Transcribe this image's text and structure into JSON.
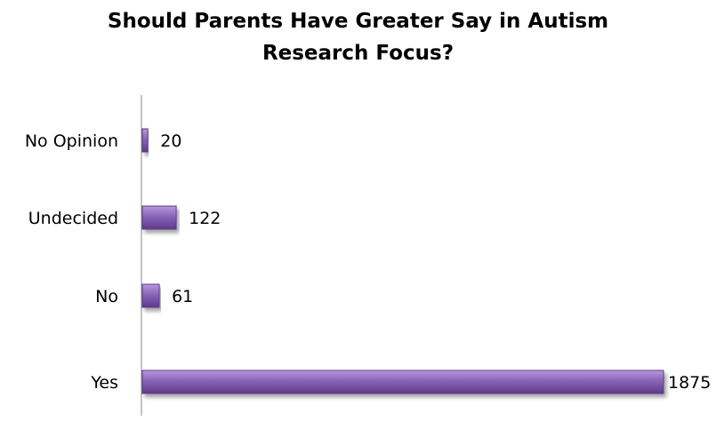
{
  "chart_data": {
    "type": "bar",
    "orientation": "horizontal",
    "title": "Should Parents Have Greater Say in Autism\nResearch Focus?",
    "categories": [
      "No Opinion",
      "Undecided",
      "No",
      "Yes"
    ],
    "values": [
      20,
      122,
      61,
      1875
    ],
    "xlim": [
      0,
      1875
    ],
    "grid": false,
    "legend": "none",
    "data_labels": true,
    "colors": {
      "bar_dark": "#5e3a8a",
      "bar_mid": "#8a63b8",
      "bar_light": "#b79ad8",
      "axis": "#888888"
    }
  }
}
